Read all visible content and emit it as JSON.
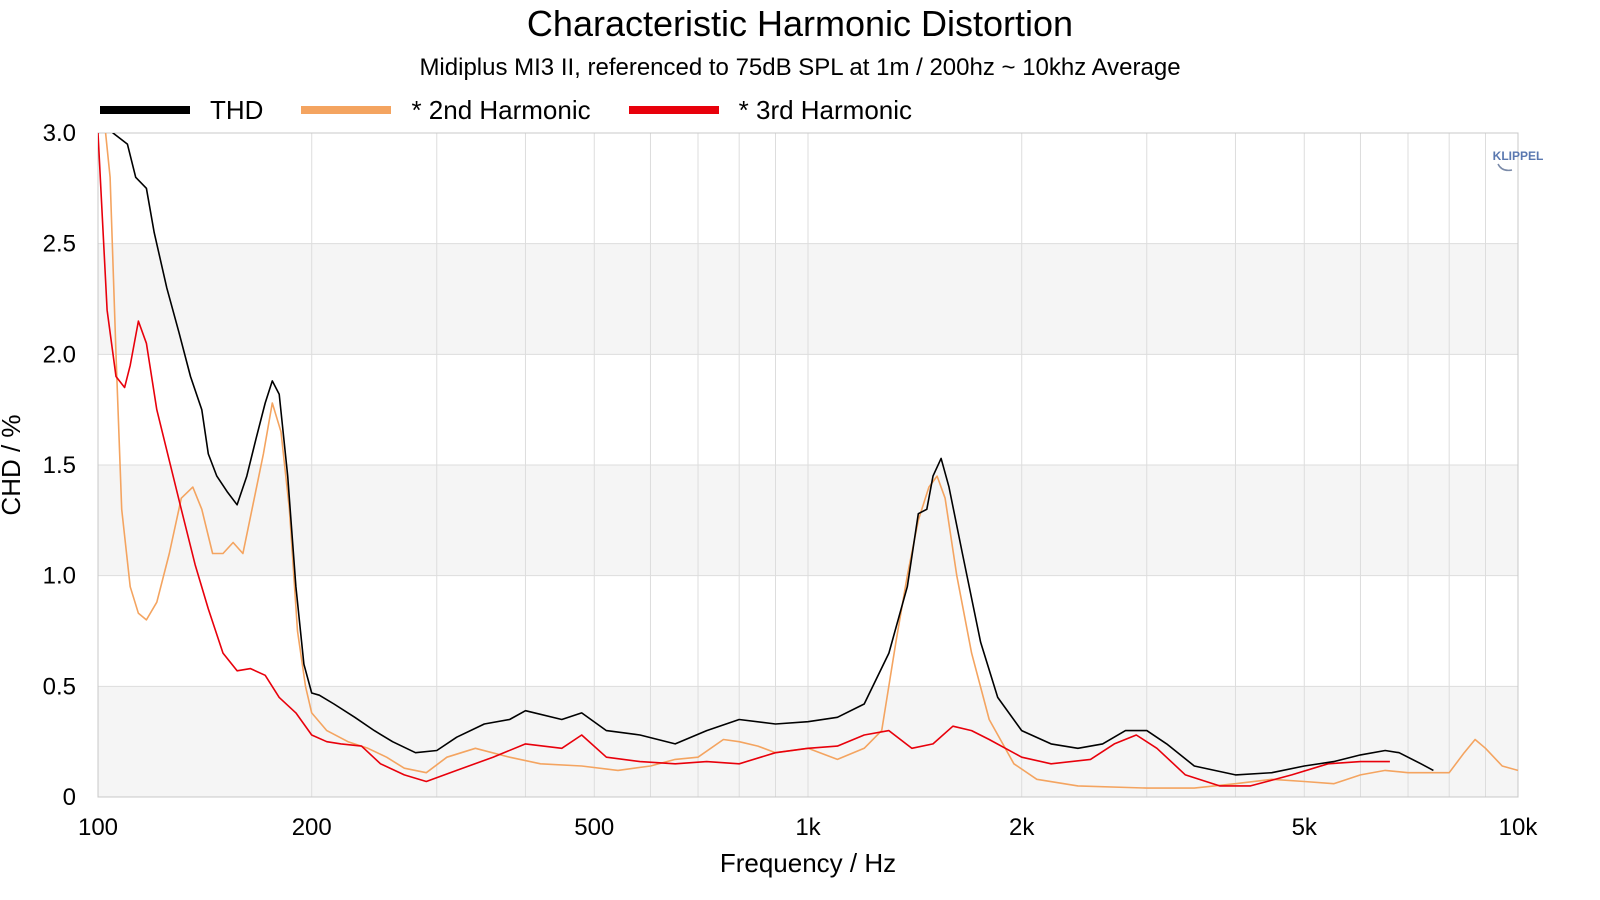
{
  "chart_data": {
    "type": "line",
    "title": "Characteristic Harmonic Distortion",
    "subtitle": "Midiplus MI3 II, referenced to 75dB SPL at 1m / 200hz ~ 10khz Average",
    "xlabel": "Frequency / Hz",
    "ylabel": "CHD / %",
    "xscale": "log",
    "xlim": [
      100,
      10000
    ],
    "ylim": [
      0,
      3.0
    ],
    "xticks": [
      100,
      200,
      500,
      1000,
      2000,
      5000,
      10000
    ],
    "xtick_labels": [
      "100",
      "200",
      "500",
      "1k",
      "2k",
      "5k",
      "10k"
    ],
    "yticks": [
      0,
      0.5,
      1.0,
      1.5,
      2.0,
      2.5,
      3.0
    ],
    "ytick_labels": [
      "0",
      "0.5",
      "1.0",
      "1.5",
      "2.0",
      "2.5",
      "3.0"
    ],
    "grid": true,
    "legend_position": "top-left",
    "series": [
      {
        "name": "THD",
        "color": "#000000",
        "points": [
          [
            101,
            3.2
          ],
          [
            105,
            3.0
          ],
          [
            110,
            2.95
          ],
          [
            113,
            2.8
          ],
          [
            117,
            2.75
          ],
          [
            120,
            2.55
          ],
          [
            125,
            2.3
          ],
          [
            130,
            2.1
          ],
          [
            135,
            1.9
          ],
          [
            140,
            1.75
          ],
          [
            143,
            1.55
          ],
          [
            147,
            1.45
          ],
          [
            152,
            1.38
          ],
          [
            157,
            1.32
          ],
          [
            162,
            1.45
          ],
          [
            167,
            1.62
          ],
          [
            172,
            1.78
          ],
          [
            176,
            1.88
          ],
          [
            180,
            1.82
          ],
          [
            185,
            1.45
          ],
          [
            190,
            0.95
          ],
          [
            195,
            0.6
          ],
          [
            200,
            0.47
          ],
          [
            205,
            0.46
          ],
          [
            215,
            0.42
          ],
          [
            230,
            0.36
          ],
          [
            245,
            0.3
          ],
          [
            260,
            0.25
          ],
          [
            280,
            0.2
          ],
          [
            300,
            0.21
          ],
          [
            320,
            0.27
          ],
          [
            350,
            0.33
          ],
          [
            380,
            0.35
          ],
          [
            400,
            0.39
          ],
          [
            450,
            0.35
          ],
          [
            480,
            0.38
          ],
          [
            520,
            0.3
          ],
          [
            580,
            0.28
          ],
          [
            650,
            0.24
          ],
          [
            720,
            0.3
          ],
          [
            800,
            0.35
          ],
          [
            900,
            0.33
          ],
          [
            1000,
            0.34
          ],
          [
            1100,
            0.36
          ],
          [
            1200,
            0.42
          ],
          [
            1300,
            0.65
          ],
          [
            1380,
            0.95
          ],
          [
            1430,
            1.28
          ],
          [
            1470,
            1.3
          ],
          [
            1500,
            1.45
          ],
          [
            1540,
            1.53
          ],
          [
            1580,
            1.4
          ],
          [
            1650,
            1.1
          ],
          [
            1750,
            0.7
          ],
          [
            1850,
            0.45
          ],
          [
            2000,
            0.3
          ],
          [
            2200,
            0.24
          ],
          [
            2400,
            0.22
          ],
          [
            2600,
            0.24
          ],
          [
            2800,
            0.3
          ],
          [
            3000,
            0.3
          ],
          [
            3200,
            0.24
          ],
          [
            3500,
            0.14
          ],
          [
            4000,
            0.1
          ],
          [
            4500,
            0.11
          ],
          [
            5000,
            0.14
          ],
          [
            5500,
            0.16
          ],
          [
            6000,
            0.19
          ],
          [
            6500,
            0.21
          ],
          [
            6800,
            0.2
          ],
          [
            7300,
            0.15
          ],
          [
            7600,
            0.12
          ]
        ]
      },
      {
        "name": "* 2nd Harmonic",
        "color": "#F4A460",
        "points": [
          [
            101,
            3.2
          ],
          [
            104,
            2.8
          ],
          [
            106,
            2.0
          ],
          [
            108,
            1.3
          ],
          [
            111,
            0.95
          ],
          [
            114,
            0.83
          ],
          [
            117,
            0.8
          ],
          [
            121,
            0.88
          ],
          [
            126,
            1.1
          ],
          [
            131,
            1.35
          ],
          [
            136,
            1.4
          ],
          [
            140,
            1.3
          ],
          [
            145,
            1.1
          ],
          [
            150,
            1.1
          ],
          [
            155,
            1.15
          ],
          [
            160,
            1.1
          ],
          [
            166,
            1.35
          ],
          [
            171,
            1.55
          ],
          [
            176,
            1.78
          ],
          [
            181,
            1.65
          ],
          [
            186,
            1.3
          ],
          [
            191,
            0.75
          ],
          [
            196,
            0.5
          ],
          [
            200,
            0.38
          ],
          [
            210,
            0.3
          ],
          [
            225,
            0.25
          ],
          [
            240,
            0.22
          ],
          [
            255,
            0.18
          ],
          [
            270,
            0.13
          ],
          [
            290,
            0.11
          ],
          [
            310,
            0.18
          ],
          [
            340,
            0.22
          ],
          [
            380,
            0.18
          ],
          [
            420,
            0.15
          ],
          [
            480,
            0.14
          ],
          [
            540,
            0.12
          ],
          [
            600,
            0.14
          ],
          [
            650,
            0.17
          ],
          [
            700,
            0.18
          ],
          [
            760,
            0.26
          ],
          [
            800,
            0.25
          ],
          [
            850,
            0.23
          ],
          [
            900,
            0.2
          ],
          [
            1000,
            0.22
          ],
          [
            1100,
            0.17
          ],
          [
            1200,
            0.22
          ],
          [
            1270,
            0.3
          ],
          [
            1330,
            0.7
          ],
          [
            1380,
            1.0
          ],
          [
            1430,
            1.25
          ],
          [
            1480,
            1.4
          ],
          [
            1520,
            1.45
          ],
          [
            1560,
            1.35
          ],
          [
            1620,
            1.0
          ],
          [
            1700,
            0.65
          ],
          [
            1800,
            0.35
          ],
          [
            1950,
            0.15
          ],
          [
            2100,
            0.08
          ],
          [
            2400,
            0.05
          ],
          [
            3000,
            0.04
          ],
          [
            3500,
            0.04
          ],
          [
            4000,
            0.06
          ],
          [
            4500,
            0.08
          ],
          [
            5000,
            0.07
          ],
          [
            5500,
            0.06
          ],
          [
            6000,
            0.1
          ],
          [
            6500,
            0.12
          ],
          [
            7000,
            0.11
          ],
          [
            7500,
            0.11
          ],
          [
            8000,
            0.11
          ],
          [
            8400,
            0.2
          ],
          [
            8700,
            0.26
          ],
          [
            9000,
            0.22
          ],
          [
            9500,
            0.14
          ],
          [
            10000,
            0.12
          ]
        ]
      },
      {
        "name": "* 3rd Harmonic",
        "color": "#E8000B",
        "points": [
          [
            100,
            3.0
          ],
          [
            103,
            2.2
          ],
          [
            106,
            1.9
          ],
          [
            109,
            1.85
          ],
          [
            111,
            1.95
          ],
          [
            114,
            2.15
          ],
          [
            117,
            2.05
          ],
          [
            121,
            1.75
          ],
          [
            126,
            1.52
          ],
          [
            131,
            1.3
          ],
          [
            137,
            1.05
          ],
          [
            143,
            0.85
          ],
          [
            150,
            0.65
          ],
          [
            157,
            0.57
          ],
          [
            164,
            0.58
          ],
          [
            172,
            0.55
          ],
          [
            180,
            0.45
          ],
          [
            190,
            0.38
          ],
          [
            200,
            0.28
          ],
          [
            210,
            0.25
          ],
          [
            220,
            0.24
          ],
          [
            235,
            0.23
          ],
          [
            250,
            0.15
          ],
          [
            270,
            0.1
          ],
          [
            290,
            0.07
          ],
          [
            320,
            0.12
          ],
          [
            360,
            0.18
          ],
          [
            400,
            0.24
          ],
          [
            450,
            0.22
          ],
          [
            480,
            0.28
          ],
          [
            520,
            0.18
          ],
          [
            580,
            0.16
          ],
          [
            650,
            0.15
          ],
          [
            720,
            0.16
          ],
          [
            800,
            0.15
          ],
          [
            900,
            0.2
          ],
          [
            1000,
            0.22
          ],
          [
            1100,
            0.23
          ],
          [
            1200,
            0.28
          ],
          [
            1300,
            0.3
          ],
          [
            1400,
            0.22
          ],
          [
            1500,
            0.24
          ],
          [
            1600,
            0.32
          ],
          [
            1700,
            0.3
          ],
          [
            1800,
            0.26
          ],
          [
            2000,
            0.18
          ],
          [
            2200,
            0.15
          ],
          [
            2500,
            0.17
          ],
          [
            2700,
            0.24
          ],
          [
            2900,
            0.28
          ],
          [
            3100,
            0.22
          ],
          [
            3400,
            0.1
          ],
          [
            3800,
            0.05
          ],
          [
            4200,
            0.05
          ],
          [
            4800,
            0.1
          ],
          [
            5400,
            0.15
          ],
          [
            6000,
            0.16
          ],
          [
            6600,
            0.16
          ]
        ]
      }
    ]
  },
  "legend": {
    "items": [
      {
        "label": "THD",
        "color": "#000000"
      },
      {
        "label": "* 2nd Harmonic",
        "color": "#F4A460"
      },
      {
        "label": "* 3rd Harmonic",
        "color": "#E8000B"
      }
    ]
  },
  "logo": {
    "text": "KLIPPEL"
  }
}
